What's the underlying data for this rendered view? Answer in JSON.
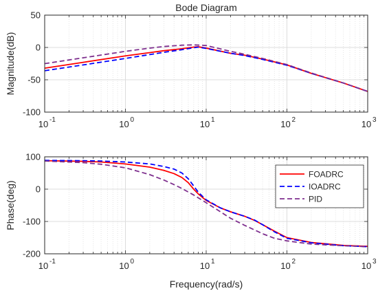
{
  "chart_data": [
    {
      "type": "line",
      "title": "Bode Diagram",
      "xlabel": "",
      "ylabel": "Magnitude(dB)",
      "xscale": "log",
      "xlim": [
        0.1,
        1000
      ],
      "ylim": [
        -100,
        50
      ],
      "yticks": [
        50,
        0,
        -50,
        -100
      ],
      "xticks": [
        0.1,
        1,
        10,
        100,
        1000
      ],
      "xtick_bases": [
        "10",
        "10",
        "10",
        "10",
        "10"
      ],
      "xtick_exponents": [
        "-1",
        "0",
        "1",
        "2",
        "3"
      ],
      "grid": true,
      "series": [
        {
          "name": "FOADRC",
          "color": "#ff0000",
          "dash": "solid",
          "x": [
            0.1,
            0.3,
            1,
            2,
            3,
            5,
            7,
            8,
            10,
            20,
            30,
            50,
            100,
            200,
            500,
            1000
          ],
          "y": [
            -32,
            -23,
            -13,
            -8,
            -5,
            -2,
            0.5,
            1,
            -1,
            -9,
            -12,
            -18,
            -27,
            -40,
            -55,
            -68
          ]
        },
        {
          "name": "IOADRC",
          "color": "#0000ff",
          "dash": "dashed",
          "x": [
            0.1,
            0.3,
            1,
            2,
            3,
            5,
            7,
            8,
            10,
            20,
            30,
            50,
            100,
            200,
            500,
            1000
          ],
          "y": [
            -36,
            -27,
            -17,
            -11,
            -7.5,
            -3.5,
            -0.5,
            0.5,
            -1.5,
            -9,
            -12.5,
            -18.5,
            -27.5,
            -40,
            -55,
            -68
          ]
        },
        {
          "name": "PID",
          "color": "#7e2f8e",
          "dash": "dashed",
          "x": [
            0.1,
            0.3,
            1,
            2,
            3,
            5,
            7,
            10,
            20,
            30,
            50,
            100,
            200,
            500,
            1000
          ],
          "y": [
            -25,
            -16,
            -6,
            -1,
            1.5,
            3.5,
            4,
            3,
            -6,
            -10.5,
            -17,
            -26.5,
            -39.5,
            -55,
            -68
          ]
        }
      ]
    },
    {
      "type": "line",
      "title": "",
      "xlabel": "Frequency(rad/s)",
      "ylabel": "Phase(deg)",
      "xscale": "log",
      "xlim": [
        0.1,
        1000
      ],
      "ylim": [
        -200,
        100
      ],
      "yticks": [
        100,
        0,
        -100,
        -200
      ],
      "xticks": [
        0.1,
        1,
        10,
        100,
        1000
      ],
      "xtick_bases": [
        "10",
        "10",
        "10",
        "10",
        "10"
      ],
      "xtick_exponents": [
        "-1",
        "0",
        "1",
        "2",
        "3"
      ],
      "grid": true,
      "legend": {
        "position": "right",
        "entries": [
          "FOADRC",
          "IOADRC",
          "PID"
        ]
      },
      "series": [
        {
          "name": "FOADRC",
          "color": "#ff0000",
          "dash": "solid",
          "x": [
            0.1,
            0.3,
            0.5,
            1,
            2,
            3,
            4,
            5,
            6,
            7,
            8,
            10,
            15,
            20,
            30,
            40,
            50,
            70,
            100,
            200,
            500,
            1000
          ],
          "y": [
            88,
            86,
            84,
            78,
            68,
            58,
            48,
            36,
            20,
            0,
            -15,
            -35,
            -58,
            -70,
            -84,
            -97,
            -110,
            -130,
            -150,
            -165,
            -174,
            -177
          ]
        },
        {
          "name": "IOADRC",
          "color": "#0000ff",
          "dash": "dashed",
          "x": [
            0.1,
            0.3,
            0.5,
            1,
            2,
            3,
            4,
            5,
            6,
            7,
            8,
            10,
            15,
            20,
            30,
            40,
            50,
            70,
            100,
            200,
            500,
            1000
          ],
          "y": [
            89,
            88,
            87,
            84,
            78,
            70,
            62,
            50,
            32,
            10,
            -10,
            -33,
            -58,
            -70,
            -84,
            -96,
            -110,
            -132,
            -152,
            -166,
            -175,
            -178
          ]
        },
        {
          "name": "PID",
          "color": "#7e2f8e",
          "dash": "dashed",
          "x": [
            0.1,
            0.3,
            0.5,
            1,
            2,
            3,
            4,
            5,
            7,
            10,
            15,
            20,
            30,
            50,
            70,
            100,
            200,
            500,
            1000
          ],
          "y": [
            87,
            82,
            77,
            66,
            45,
            28,
            14,
            2,
            -18,
            -42,
            -70,
            -90,
            -112,
            -138,
            -152,
            -160,
            -170,
            -175,
            -178
          ]
        }
      ]
    }
  ]
}
